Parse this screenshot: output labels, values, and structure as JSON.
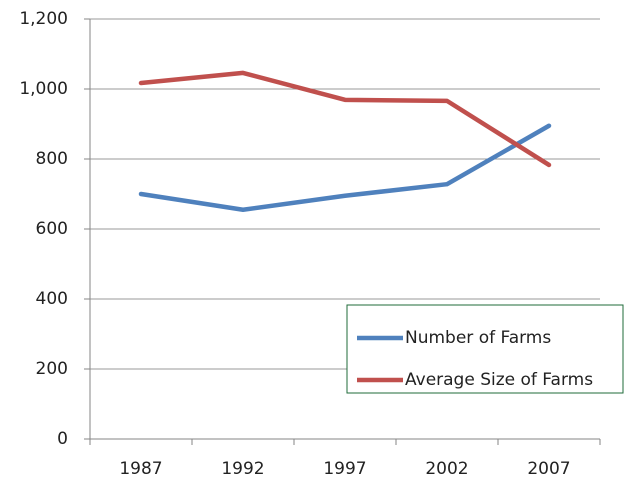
{
  "chart_data": {
    "type": "line",
    "categories": [
      "1987",
      "1992",
      "1997",
      "2002",
      "2007"
    ],
    "series": [
      {
        "name": "Number of Farms",
        "color": "#4f81bd",
        "values": [
          700,
          655,
          695,
          728,
          895
        ]
      },
      {
        "name": "Average Size of Farms",
        "color": "#c0504d",
        "values": [
          1017,
          1046,
          969,
          966,
          783
        ]
      }
    ],
    "ylim": [
      0,
      1200
    ],
    "yticks": [
      0,
      200,
      400,
      600,
      800,
      {
        "value": 1000,
        "label": "1,000"
      },
      {
        "value": 1200,
        "label": "1,200"
      }
    ],
    "grid": true,
    "legend": "lower-right"
  }
}
